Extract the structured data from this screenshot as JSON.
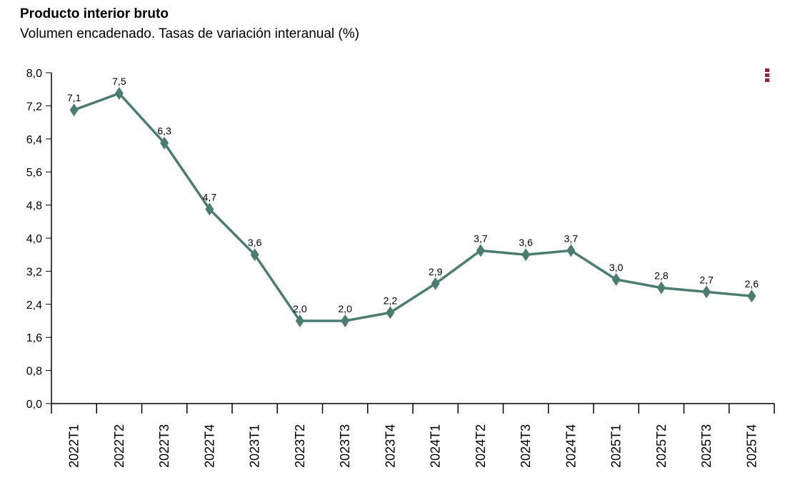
{
  "header": {
    "title": "Producto interior bruto",
    "subtitle": "Volumen encadenado. Tasas de variación interanual (%)"
  },
  "menu": {
    "icon": "more-vertical-icon",
    "color": "#a31a45"
  },
  "chart_data": {
    "type": "line",
    "title": "Producto interior bruto",
    "subtitle": "Volumen encadenado. Tasas de variación interanual (%)",
    "categories": [
      "2022T1",
      "2022T2",
      "2022T3",
      "2022T4",
      "2023T1",
      "2023T2",
      "2023T3",
      "2023T4",
      "2024T1",
      "2024T2",
      "2024T3",
      "2024T4",
      "2025T1",
      "2025T2",
      "2025T3",
      "2025T4"
    ],
    "values": [
      7.1,
      7.5,
      6.3,
      4.7,
      3.6,
      2.0,
      2.0,
      2.2,
      2.9,
      3.7,
      3.6,
      3.7,
      3.0,
      2.8,
      2.7,
      2.6
    ],
    "data_labels": [
      "7,1",
      "7,5",
      "6,3",
      "4,7",
      "3,6",
      "2,0",
      "2,0",
      "2,2",
      "2,9",
      "3,7",
      "3,6",
      "3,7",
      "3,0",
      "2,8",
      "2,7",
      "2,6"
    ],
    "ylim": [
      0,
      8
    ],
    "yticks": [
      "0,0",
      "0,8",
      "1,6",
      "2,4",
      "3,2",
      "4,0",
      "4,8",
      "5,6",
      "6,4",
      "7,2",
      "8,0"
    ],
    "marker": "diamond",
    "color": "#4a7d70",
    "grid": false,
    "legend": "none"
  }
}
